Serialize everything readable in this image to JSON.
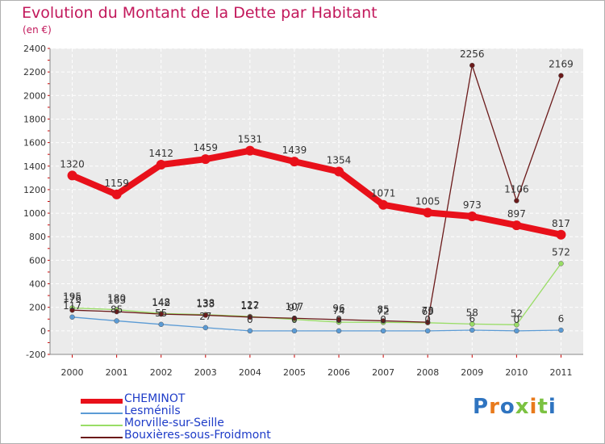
{
  "title": "Evolution du Montant de la Dette par Habitant",
  "subtitle": "(en €)",
  "logo_text": "Proxiti",
  "chart_data": {
    "type": "line",
    "x": [
      "2000",
      "2001",
      "2002",
      "2003",
      "2004",
      "2005",
      "2006",
      "2007",
      "2008",
      "2009",
      "2010",
      "2011"
    ],
    "ylim": [
      -200,
      2400
    ],
    "yticks": [
      -200,
      0,
      200,
      400,
      600,
      800,
      1000,
      1200,
      1400,
      1600,
      1800,
      2000,
      2200,
      2400
    ],
    "grid": true,
    "legend_placement": "bottom-left",
    "series": [
      {
        "name": "CHEMINOT",
        "color": "#e8101a",
        "values": [
          1320,
          1159,
          1412,
          1459,
          1531,
          1439,
          1354,
          1071,
          1005,
          973,
          897,
          817
        ],
        "labels": [
          "1320",
          "1159",
          "1412",
          "1459",
          "1531",
          "1439",
          "1354",
          "1071",
          "1005",
          "973",
          "897",
          "817"
        ]
      },
      {
        "name": "Lesménils",
        "color": "#5b9bd5",
        "values": [
          117,
          85,
          55,
          27,
          0,
          0,
          0,
          0,
          0,
          6,
          0,
          6
        ],
        "labels": [
          "117",
          "85",
          "55",
          "27",
          "0",
          "0",
          "0",
          "0",
          "0",
          "6",
          "0",
          "6"
        ]
      },
      {
        "name": "Morville-sur-Seille",
        "color": "#99dd66",
        "values": [
          195,
          180,
          148,
          138,
          122,
          97,
          74,
          72,
          69,
          58,
          52,
          572
        ],
        "labels": [
          "195",
          "180",
          "148",
          "138",
          "122",
          "97",
          "74",
          "72",
          "69",
          "58",
          "52",
          "572"
        ]
      },
      {
        "name": "Bouxières-sous-Froidmont",
        "color": "#6b1a1a",
        "values": [
          176,
          163,
          142,
          133,
          117,
          107,
          96,
          85,
          73,
          2256,
          1106,
          2169
        ],
        "labels": [
          "176",
          "163",
          "142",
          "133",
          "117",
          "107",
          "96",
          "85",
          "73",
          "2256",
          "1106",
          "2169"
        ]
      }
    ]
  }
}
